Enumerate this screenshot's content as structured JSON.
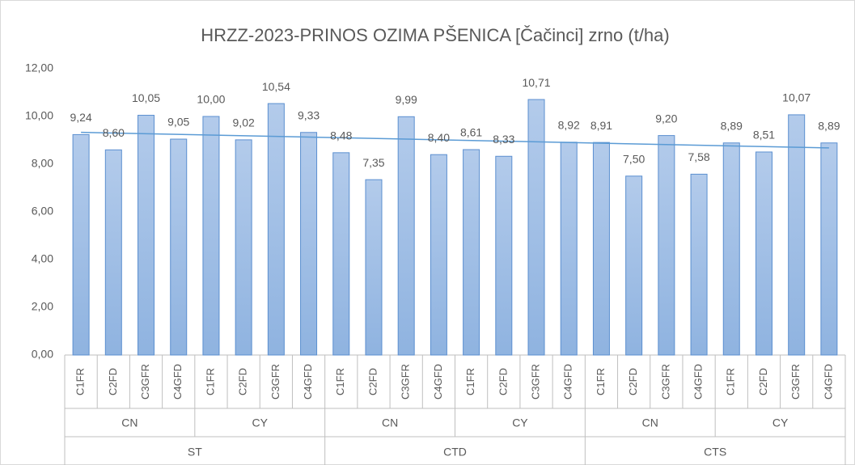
{
  "chart_data": {
    "type": "bar",
    "title": "HRZZ-2023-PRINOS  OZIMA  PŠENICA  [Čačinci]  zrno  (t/ha)",
    "categories": [
      "C1FR",
      "C2FD",
      "C3GFR",
      "C4GFD",
      "C1FR",
      "C2FD",
      "C3GFR",
      "C4GFD",
      "C1FR",
      "C2FD",
      "C3GFR",
      "C4GFD",
      "C1FR",
      "C2FD",
      "C3GFR",
      "C4GFD",
      "C1FR",
      "C2FD",
      "C3GFR",
      "C4GFD",
      "C1FR",
      "C2FD",
      "C3GFR",
      "C4GFD"
    ],
    "groups": [
      "CN",
      "CY",
      "CN",
      "CY",
      "CN",
      "CY"
    ],
    "supergroups": [
      "ST",
      "CTD",
      "CTS"
    ],
    "values": [
      9.24,
      8.6,
      10.05,
      9.05,
      10.0,
      9.02,
      10.54,
      9.33,
      8.48,
      7.35,
      9.99,
      8.4,
      8.61,
      8.33,
      10.71,
      8.92,
      8.91,
      7.5,
      9.2,
      7.58,
      8.89,
      8.51,
      10.07,
      8.89
    ],
    "value_labels": [
      "9,24",
      "8,60",
      "10,05",
      "9,05",
      "10,00",
      "9,02",
      "10,54",
      "9,33",
      "8,48",
      "7,35",
      "9,99",
      "8,40",
      "8,61",
      "8,33",
      "10,71",
      "8,92",
      "8,91",
      "7,50",
      "9,20",
      "7,58",
      "8,89",
      "8,51",
      "10,07",
      "8,89"
    ],
    "color": "#a8c4e8",
    "ylim": [
      0,
      12
    ],
    "yticks": [
      {
        "value": 0,
        "label": "0,00"
      },
      {
        "value": 2,
        "label": "2,00"
      },
      {
        "value": 4,
        "label": "4,00"
      },
      {
        "value": 6,
        "label": "6,00"
      },
      {
        "value": 8,
        "label": "8,00"
      },
      {
        "value": 10,
        "label": "10,00"
      },
      {
        "value": 12,
        "label": "12,00"
      }
    ],
    "grid": false,
    "trendline": "linear"
  }
}
